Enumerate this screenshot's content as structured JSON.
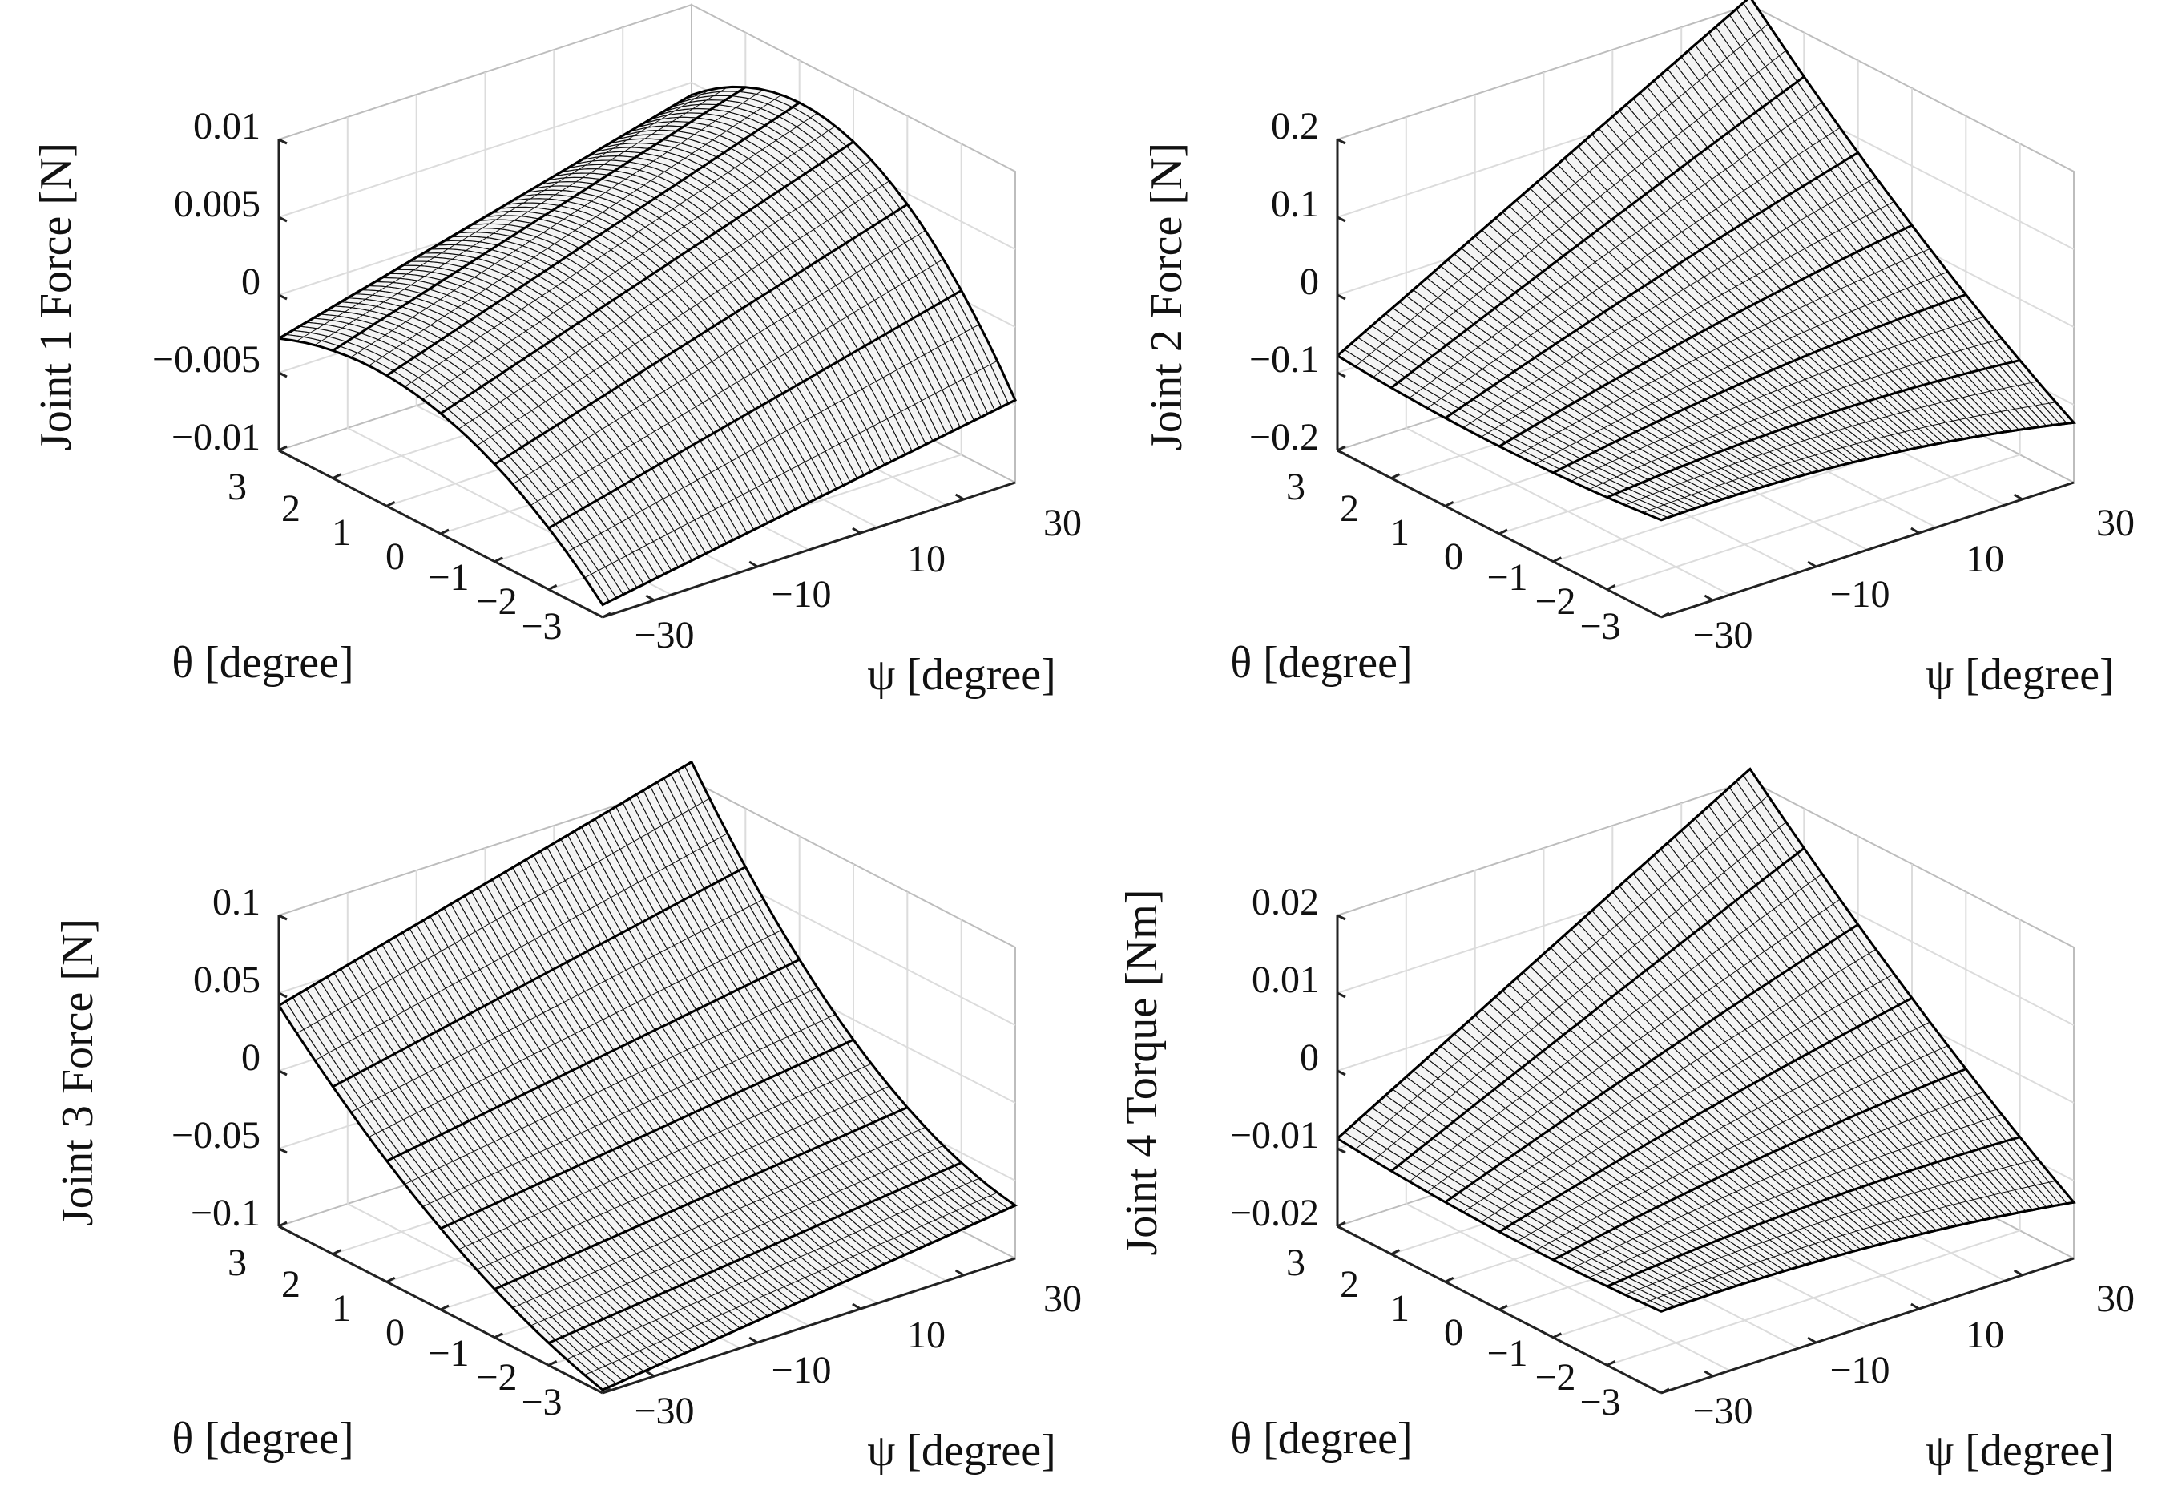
{
  "chart_data": [
    {
      "type": "surface",
      "zlabel": "Joint 1 Force [N]",
      "xlabel": "θ [degree]",
      "ylabel": "ψ [degree]",
      "theta_range": [
        -3,
        3
      ],
      "psi_range": [
        -30,
        30
      ],
      "zlim": [
        -0.01,
        0.01
      ],
      "theta_ticks": [
        "3",
        "2",
        "1",
        "0",
        "−1",
        "−2",
        "−3"
      ],
      "psi_ticks": [
        "−30",
        "−10",
        "10",
        "30"
      ],
      "z_ticks": [
        "−0.01",
        "−0.005",
        "0",
        "0.005",
        "0.01"
      ],
      "corner_values": {
        "theta_pos_psi_neg": -0.0028,
        "theta_neg_psi_neg": -0.0092,
        "theta_pos_psi_pos": 0.0042,
        "theta_neg_psi_pos": -0.0047
      }
    },
    {
      "type": "surface",
      "zlabel": "Joint 2 Force [N]",
      "xlabel": "θ [degree]",
      "ylabel": "ψ [degree]",
      "theta_range": [
        -3,
        3
      ],
      "psi_range": [
        -30,
        30
      ],
      "zlim": [
        -0.2,
        0.2
      ],
      "theta_ticks": [
        "3",
        "2",
        "1",
        "0",
        "−1",
        "−2",
        "−3"
      ],
      "psi_ticks": [
        "−30",
        "−10",
        "10",
        "30"
      ],
      "z_ticks": [
        "−0.2",
        "−0.1",
        "0",
        "0.1",
        "0.2"
      ],
      "corner_values": {
        "theta_pos_psi_neg": -0.078,
        "theta_neg_psi_neg": -0.075,
        "theta_pos_psi_pos": 0.21,
        "theta_neg_psi_pos": -0.123
      }
    },
    {
      "type": "surface",
      "zlabel": "Joint 3 Force [N]",
      "xlabel": "θ [degree]",
      "ylabel": "ψ [degree]",
      "theta_range": [
        -3,
        3
      ],
      "psi_range": [
        -30,
        30
      ],
      "zlim": [
        -0.1,
        0.1
      ],
      "theta_ticks": [
        "3",
        "2",
        "1",
        "0",
        "−1",
        "−2",
        "−3"
      ],
      "psi_ticks": [
        "−30",
        "−10",
        "10",
        "30"
      ],
      "z_ticks": [
        "−0.1",
        "−0.05",
        "0",
        "0.05",
        "0.1"
      ],
      "corner_values": {
        "theta_pos_psi_neg": 0.042,
        "theta_neg_psi_neg": -0.098,
        "theta_pos_psi_pos": 0.112,
        "theta_neg_psi_pos": -0.066
      }
    },
    {
      "type": "surface",
      "zlabel": "Joint 4 Torque [Nm]",
      "xlabel": "θ [degree]",
      "ylabel": "ψ [degree]",
      "theta_range": [
        -3,
        3
      ],
      "psi_range": [
        -30,
        30
      ],
      "zlim": [
        -0.02,
        0.02
      ],
      "theta_ticks": [
        "3",
        "2",
        "1",
        "0",
        "−1",
        "−2",
        "−3"
      ],
      "psi_ticks": [
        "−30",
        "−10",
        "10",
        "30"
      ],
      "z_ticks": [
        "−0.02",
        "−0.01",
        "0",
        "0.01",
        "0.02"
      ],
      "corner_values": {
        "theta_pos_psi_neg": -0.0087,
        "theta_neg_psi_neg": -0.0095,
        "theta_pos_psi_pos": 0.0215,
        "theta_neg_psi_pos": -0.0128
      }
    }
  ]
}
